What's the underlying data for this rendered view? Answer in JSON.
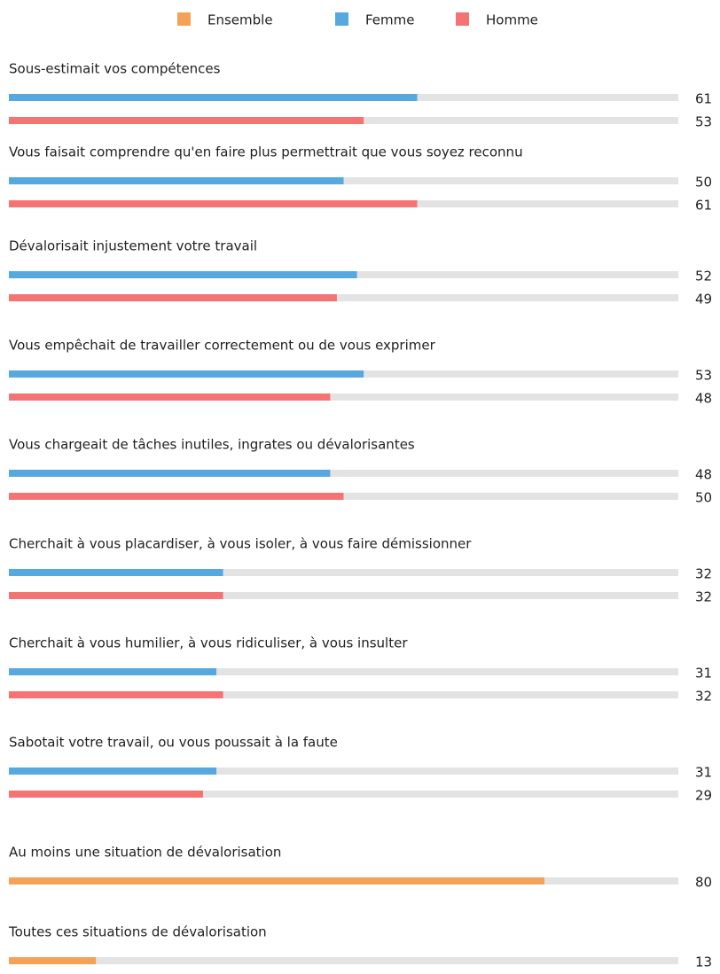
{
  "chart_data": {
    "type": "bar",
    "categories": [
      "Sous-estimait vos compétences",
      "Vous faisait comprendre qu'en faire plus permettrait que vous soyez reconnu",
      "Dévalorisait injustement votre travail",
      "Vous empêchait de travailler correctement ou de vous exprimer",
      "Vous chargeait de tâches inutiles, ingrates ou dévalorisantes",
      "Cherchait à vous placardiser, à vous isoler, à vous faire démissionner",
      "Cherchait à vous humilier, à vous ridiculiser, à vous insulter",
      "Sabotait votre travail, ou vous poussait à la faute",
      "Au moins une situation de dévalorisation",
      "Toutes ces situations de dévalorisation"
    ],
    "series": [
      {
        "name": "Ensemble",
        "color": "#f4a258",
        "values": [
          null,
          null,
          null,
          null,
          null,
          null,
          null,
          null,
          80,
          13
        ]
      },
      {
        "name": "Femme",
        "color": "#56a8e0",
        "values": [
          61,
          50,
          52,
          53,
          48,
          32,
          31,
          31,
          null,
          null
        ]
      },
      {
        "name": "Homme",
        "color": "#f57373",
        "values": [
          53,
          61,
          49,
          48,
          50,
          32,
          32,
          29,
          null,
          null
        ]
      }
    ],
    "xlim": [
      0,
      100
    ],
    "legend": "top"
  }
}
